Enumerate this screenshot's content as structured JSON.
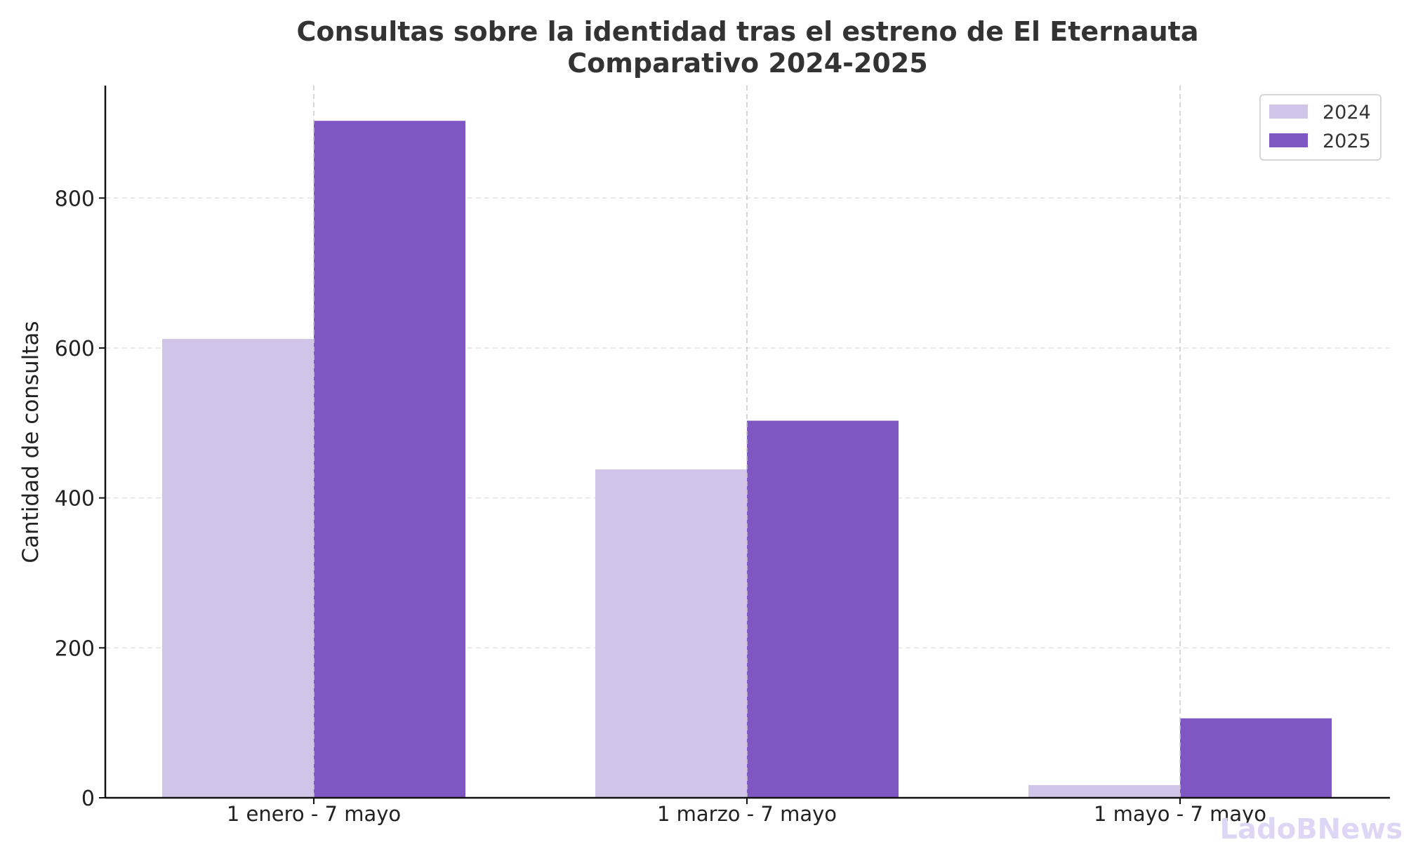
{
  "chart_data": {
    "type": "bar",
    "title": "Consultas sobre la identidad tras el estreno de El Eternauta",
    "subtitle": "Comparativo 2024-2025",
    "xlabel": "",
    "ylabel": "Cantidad de consultas",
    "categories": [
      "1 enero - 7 mayo",
      "1 marzo - 7 mayo",
      "1 mayo - 7 mayo"
    ],
    "series": [
      {
        "name": "2024",
        "values": [
          612,
          438,
          17
        ],
        "color": "#d0c4e8"
      },
      {
        "name": "2025",
        "values": [
          903,
          503,
          106
        ],
        "color": "#7e57c2"
      }
    ],
    "ylim": [
      0,
      950
    ],
    "yticks": [
      0,
      200,
      400,
      600,
      800
    ],
    "grid": true,
    "legend_position": "top-right"
  },
  "watermark": "LadoBNews"
}
